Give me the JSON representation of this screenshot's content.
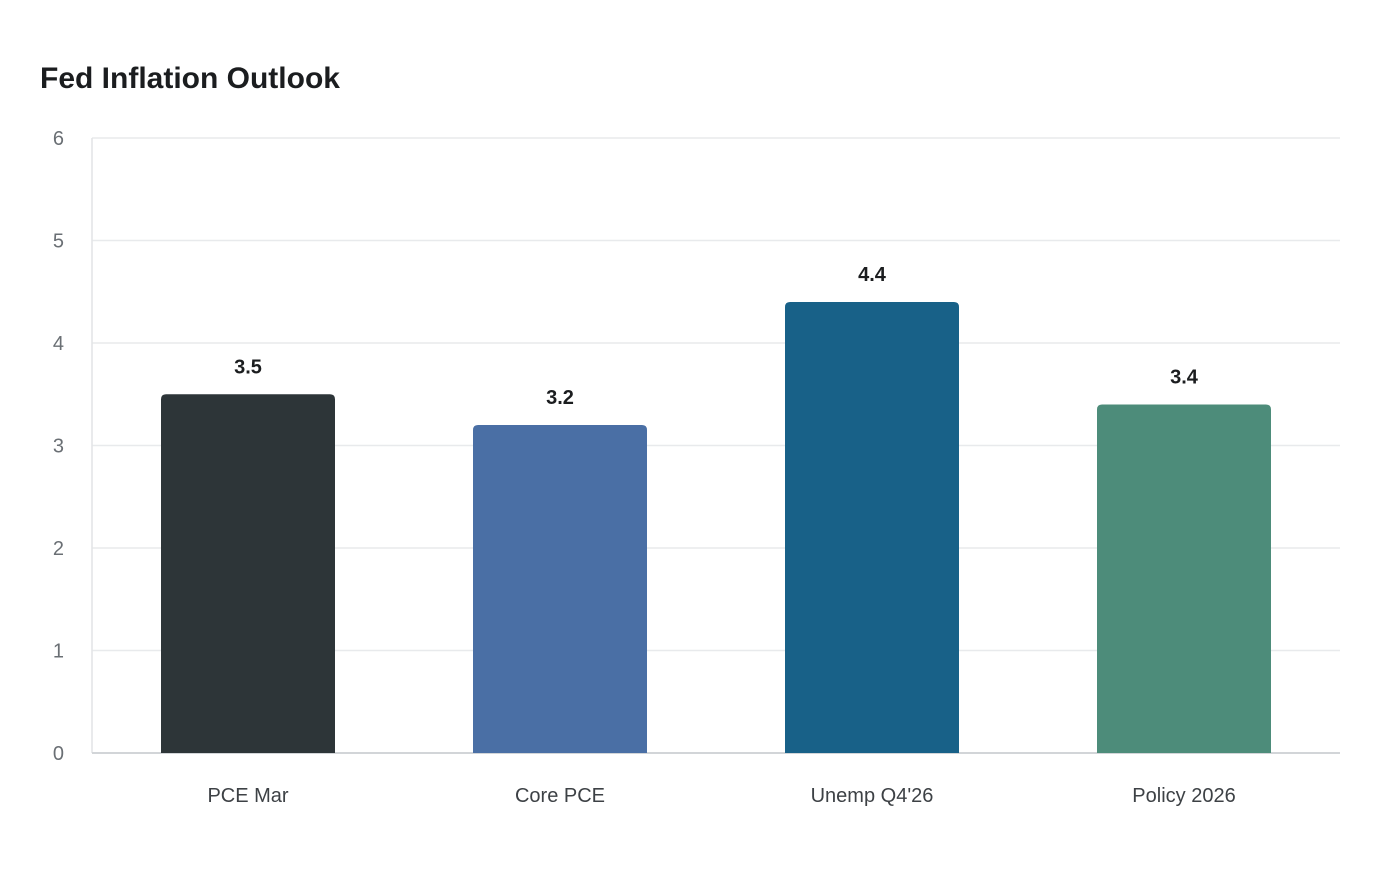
{
  "chart_data": {
    "type": "bar",
    "title": "Fed Inflation Outlook",
    "xlabel": "",
    "ylabel": "",
    "categories": [
      "PCE Mar",
      "Core PCE",
      "Unemp Q4'26",
      "Policy 2026"
    ],
    "values": [
      3.5,
      3.2,
      4.4,
      3.4
    ],
    "data_labels": [
      "3.5",
      "3.2",
      "4.4",
      "3.4"
    ],
    "colors": [
      "#2d3538",
      "#4a6fa5",
      "#186188",
      "#4d8c7a"
    ],
    "ylim": [
      0,
      6
    ],
    "yticks": [
      0,
      1,
      2,
      3,
      4,
      5,
      6
    ],
    "grid": true,
    "legend": "none"
  }
}
